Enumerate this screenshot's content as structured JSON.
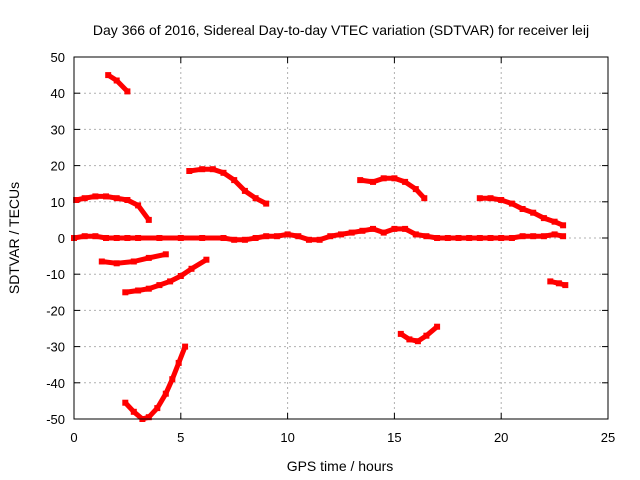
{
  "chart_data": {
    "type": "scatter",
    "title": "Day 366 of 2016, Sidereal Day-to-day VTEC variation (SDTVAR) for receiver leij",
    "xlabel": "GPS time / hours",
    "ylabel": "SDTVAR / TECUs",
    "xlim": [
      0,
      25
    ],
    "ylim": [
      -50,
      50
    ],
    "xticks": [
      0,
      5,
      10,
      15,
      20,
      25
    ],
    "yticks": [
      -50,
      -40,
      -30,
      -20,
      -10,
      0,
      10,
      20,
      30,
      40,
      50
    ],
    "grid": true,
    "legend": "none",
    "color": "#ff0000",
    "series": [
      {
        "x": [
          0.0,
          0.5,
          1.0,
          1.5,
          2.0,
          2.5,
          3.0,
          4.0,
          5.0,
          6.0,
          7.0,
          7.5,
          8.0,
          8.5,
          9.0,
          9.5,
          10.0,
          10.5,
          11.0,
          11.5,
          12.0,
          12.5,
          13.0,
          13.5,
          14.0,
          14.5,
          15.0,
          15.5,
          16.0,
          16.5,
          17.0,
          17.5,
          18.0,
          18.5,
          19.0,
          19.5,
          20.0,
          20.5,
          21.0,
          21.5,
          22.0,
          22.5,
          22.9
        ],
        "y": [
          0.0,
          0.5,
          0.5,
          0.0,
          0.0,
          0.0,
          0.0,
          0.0,
          0.0,
          0.0,
          0.0,
          -0.5,
          -0.5,
          0.0,
          0.5,
          0.5,
          1.0,
          0.5,
          -0.5,
          -0.5,
          0.5,
          1.0,
          1.5,
          2.0,
          2.5,
          1.5,
          2.5,
          2.5,
          1.0,
          0.5,
          0.0,
          0.0,
          0.0,
          0.0,
          0.0,
          0.0,
          0.0,
          0.0,
          0.5,
          0.5,
          0.5,
          1.0,
          0.5
        ]
      },
      {
        "x": [
          0.1,
          0.5,
          1.0,
          1.5,
          2.0,
          2.5,
          3.0,
          3.5
        ],
        "y": [
          10.5,
          11.0,
          11.5,
          11.5,
          11.0,
          10.5,
          9.0,
          5.0
        ]
      },
      {
        "x": [
          1.6,
          2.0,
          2.5
        ],
        "y": [
          45.0,
          43.5,
          40.5
        ]
      },
      {
        "x": [
          1.3,
          2.0,
          2.8,
          3.5,
          4.3
        ],
        "y": [
          -6.5,
          -7.0,
          -6.5,
          -5.5,
          -4.5
        ]
      },
      {
        "x": [
          2.4,
          3.0,
          3.5,
          4.0,
          4.5,
          5.0,
          5.5,
          6.2
        ],
        "y": [
          -15.0,
          -14.5,
          -14.0,
          -13.0,
          -12.0,
          -10.5,
          -8.5,
          -6.0
        ]
      },
      {
        "x": [
          2.4,
          2.8,
          3.2,
          3.5,
          3.9,
          4.3,
          4.6,
          4.9,
          5.2
        ],
        "y": [
          -45.5,
          -48.0,
          -50.0,
          -49.5,
          -47.0,
          -43.0,
          -39.0,
          -34.5,
          -30.0
        ]
      },
      {
        "x": [
          5.4,
          6.0,
          6.5,
          7.0,
          7.5,
          8.0,
          8.5,
          9.0
        ],
        "y": [
          18.5,
          19.0,
          19.0,
          18.0,
          16.0,
          13.0,
          11.0,
          9.5
        ]
      },
      {
        "x": [
          13.4,
          14.0,
          14.5,
          15.0,
          15.5,
          16.0,
          16.4
        ],
        "y": [
          16.0,
          15.5,
          16.5,
          16.5,
          15.5,
          13.5,
          11.0
        ]
      },
      {
        "x": [
          15.3,
          15.7,
          16.1,
          16.5,
          17.0
        ],
        "y": [
          -26.5,
          -28.0,
          -28.5,
          -27.0,
          -24.5
        ]
      },
      {
        "x": [
          19.0,
          19.5,
          20.0,
          20.5,
          21.0,
          21.5,
          22.0,
          22.5,
          22.9
        ],
        "y": [
          11.0,
          11.0,
          10.5,
          9.5,
          8.0,
          7.0,
          5.5,
          4.5,
          3.5
        ]
      },
      {
        "x": [
          22.3,
          22.7,
          23.0
        ],
        "y": [
          -12.0,
          -12.5,
          -13.0
        ]
      }
    ]
  }
}
